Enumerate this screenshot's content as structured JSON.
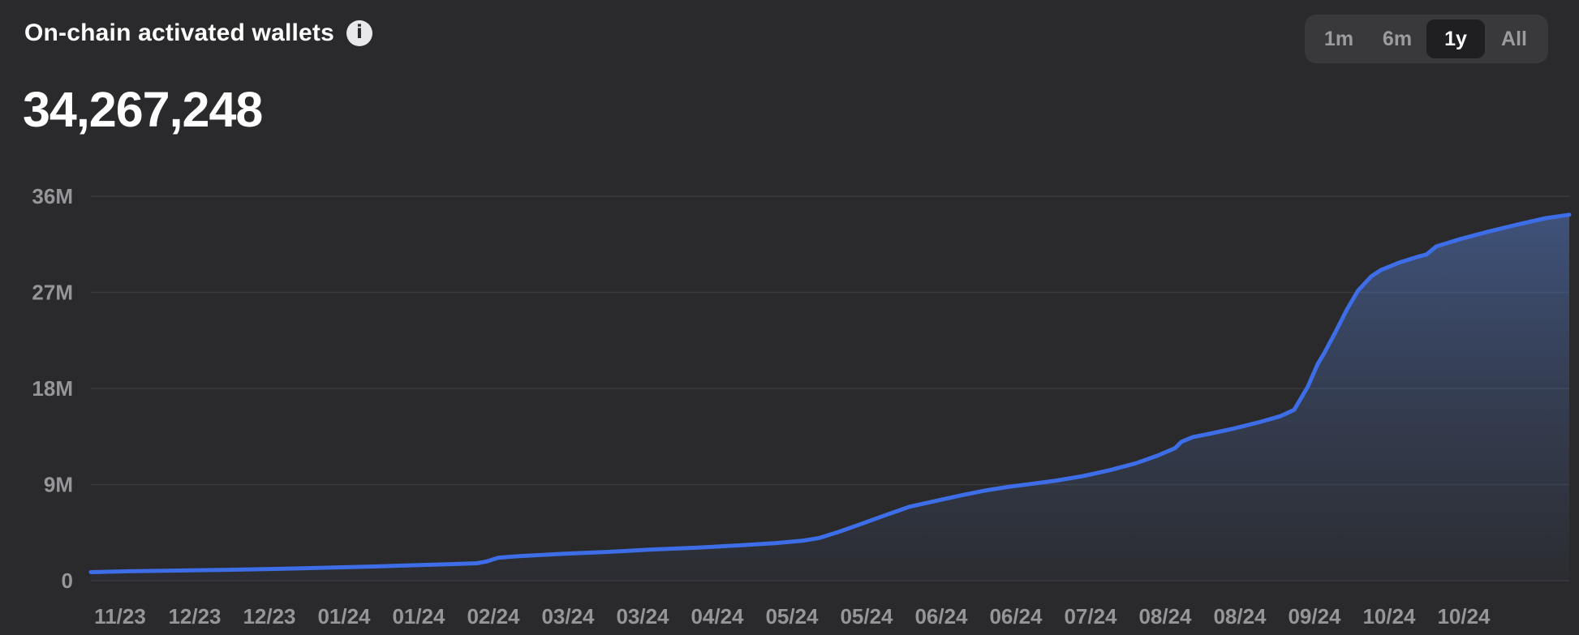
{
  "header": {
    "title": "On-chain activated wallets",
    "value": "34,267,248"
  },
  "icons": {
    "info": "i"
  },
  "range_selector": {
    "options": [
      {
        "label": "1m",
        "active": false
      },
      {
        "label": "6m",
        "active": false
      },
      {
        "label": "1y",
        "active": true
      },
      {
        "label": "All",
        "active": false
      }
    ]
  },
  "colors": {
    "background": "#2a2a2c",
    "text": "#ffffff",
    "axis_text": "#95959a",
    "gridline": "#3a3a3d",
    "selector_bg": "#39393c",
    "selector_active_bg": "#1f1f22",
    "selector_inactive_text": "#9b9ba0",
    "accent_blue": "#3d6ee7"
  },
  "chart_data": {
    "type": "area",
    "title": "On-chain activated wallets",
    "current_value": 34267248,
    "grid": true,
    "legend_position": "none",
    "y_axis": {
      "unit": "millions of wallets",
      "ylim": [
        0,
        36
      ],
      "ticks": [
        {
          "label": "36M",
          "value": 36
        },
        {
          "label": "27M",
          "value": 27
        },
        {
          "label": "18M",
          "value": 18
        },
        {
          "label": "9M",
          "value": 9
        },
        {
          "label": "0",
          "value": 0
        }
      ]
    },
    "x_axis": {
      "tick_labels": [
        "11/23",
        "12/23",
        "12/23",
        "01/24",
        "01/24",
        "02/24",
        "03/24",
        "03/24",
        "04/24",
        "05/24",
        "05/24",
        "06/24",
        "06/24",
        "07/24",
        "08/24",
        "08/24",
        "09/24",
        "10/24",
        "10/24"
      ]
    },
    "series": [
      {
        "name": "Activated wallets",
        "unit": "millions",
        "points": [
          [
            112,
            0.8
          ],
          [
            160,
            0.88
          ],
          [
            220,
            0.95
          ],
          [
            280,
            1.02
          ],
          [
            340,
            1.1
          ],
          [
            422,
            1.25
          ],
          [
            470,
            1.35
          ],
          [
            513,
            1.45
          ],
          [
            556,
            1.55
          ],
          [
            588,
            1.63
          ],
          [
            600,
            1.8
          ],
          [
            614,
            2.15
          ],
          [
            640,
            2.3
          ],
          [
            696,
            2.52
          ],
          [
            750,
            2.7
          ],
          [
            800,
            2.9
          ],
          [
            860,
            3.1
          ],
          [
            910,
            3.3
          ],
          [
            955,
            3.52
          ],
          [
            990,
            3.75
          ],
          [
            1010,
            4.0
          ],
          [
            1035,
            4.6
          ],
          [
            1061,
            5.3
          ],
          [
            1090,
            6.1
          ],
          [
            1120,
            6.9
          ],
          [
            1152,
            7.45
          ],
          [
            1185,
            8.0
          ],
          [
            1215,
            8.45
          ],
          [
            1244,
            8.8
          ],
          [
            1270,
            9.05
          ],
          [
            1300,
            9.35
          ],
          [
            1335,
            9.8
          ],
          [
            1368,
            10.35
          ],
          [
            1400,
            11.0
          ],
          [
            1426,
            11.7
          ],
          [
            1448,
            12.4
          ],
          [
            1456,
            13.0
          ],
          [
            1470,
            13.45
          ],
          [
            1490,
            13.75
          ],
          [
            1518,
            14.2
          ],
          [
            1550,
            14.8
          ],
          [
            1578,
            15.4
          ],
          [
            1595,
            16.0
          ],
          [
            1612,
            18.2
          ],
          [
            1624,
            20.3
          ],
          [
            1632,
            21.3
          ],
          [
            1646,
            23.3
          ],
          [
            1660,
            25.4
          ],
          [
            1674,
            27.2
          ],
          [
            1690,
            28.5
          ],
          [
            1702,
            29.1
          ],
          [
            1725,
            29.8
          ],
          [
            1748,
            30.35
          ],
          [
            1758,
            30.55
          ],
          [
            1770,
            31.3
          ],
          [
            1800,
            32.0
          ],
          [
            1835,
            32.7
          ],
          [
            1870,
            33.35
          ],
          [
            1905,
            33.95
          ],
          [
            1934,
            34.27
          ]
        ]
      }
    ],
    "colors": {
      "line": "#3d6ee7",
      "fill_top": "rgba(86,126,208,0.50)",
      "fill_mid": "rgba(86,126,208,0.26)",
      "fill_bottom": "rgba(86,126,208,0.03)"
    }
  }
}
